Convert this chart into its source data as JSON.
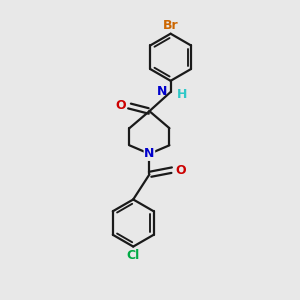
{
  "bg_color": "#e8e8e8",
  "bond_color": "#1a1a1a",
  "N_color": "#0000cc",
  "O_color": "#cc0000",
  "Br_color": "#cc6600",
  "Cl_color": "#00aa44",
  "H_color": "#2ec8c8",
  "line_width": 1.6,
  "font_size_atom": 9,
  "figsize": [
    3.0,
    3.0
  ],
  "dpi": 100,
  "xlim": [
    0,
    10
  ],
  "ylim": [
    0,
    10
  ]
}
